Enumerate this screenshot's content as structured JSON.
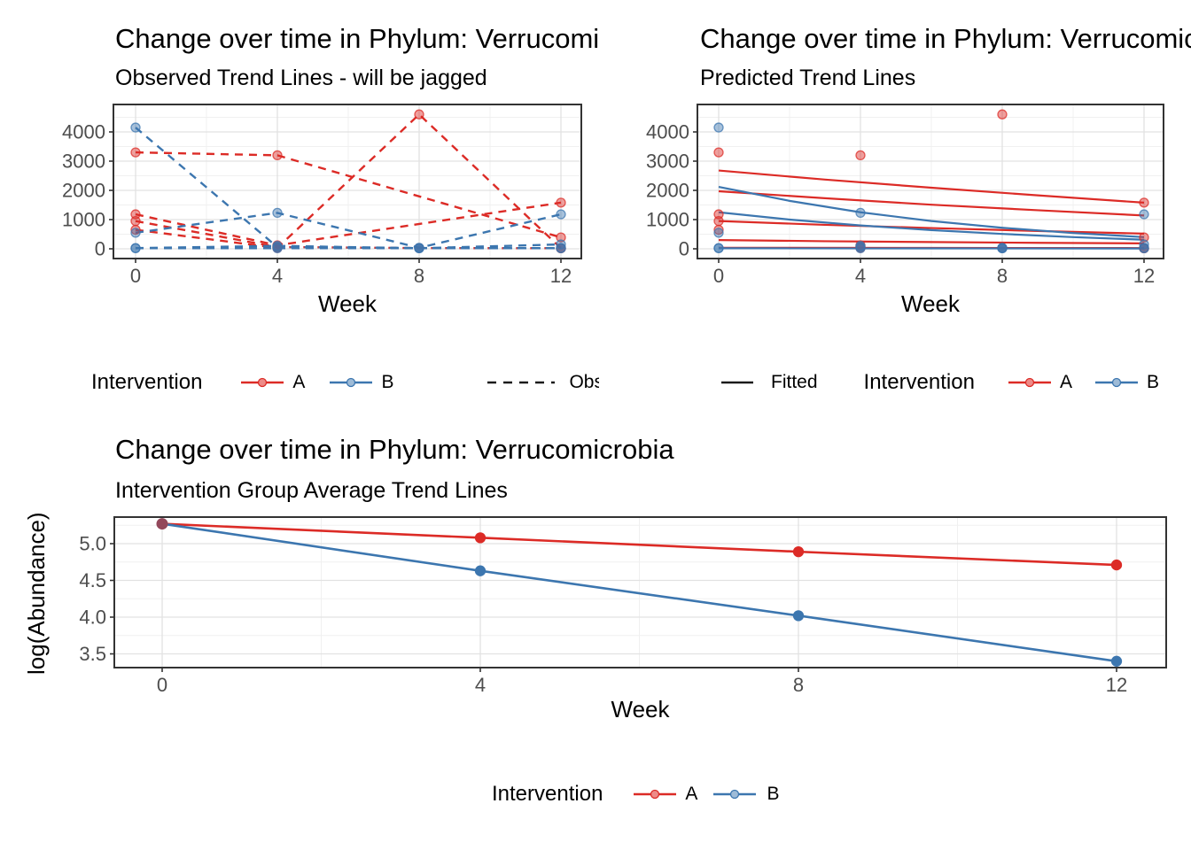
{
  "colors": {
    "red": "#DC2B26",
    "red_fill": "#ED8B88",
    "blue": "#3C76AF",
    "blue_fill": "#9EBBD7",
    "overlap_maroon": "#93485B",
    "grid_major": "#E2E2E2",
    "grid_minor": "#F0F0F0",
    "panel_border": "#333333",
    "tick_text": "#4D4D4D",
    "legend_line": "#1a1a1a"
  },
  "chart_data": [
    {
      "type": "line",
      "title": "Change over time in Phylum: Verrucomicrobia",
      "subtitle": "Observed Trend Lines - will be jagged",
      "xlabel": "Week",
      "x_ticks": [
        0,
        4,
        8,
        12
      ],
      "x_tick_labels": [
        "0",
        "4",
        "8",
        "12"
      ],
      "x_minor": [
        2,
        6,
        10
      ],
      "y_ticks": [
        0,
        1000,
        2000,
        3000,
        4000
      ],
      "y_tick_labels": [
        "0",
        "1000",
        "2000",
        "3000",
        "4000"
      ],
      "y_minor": [
        500,
        1500,
        2500,
        3500,
        4500
      ],
      "xlim": [
        -0.62,
        12.58
      ],
      "ylim": [
        -333,
        4940
      ],
      "line_style": "dashed",
      "grid": true,
      "legend_position": "bottom",
      "legend": {
        "title": "Intervention",
        "items": [
          {
            "label": "A"
          },
          {
            "label": "B"
          }
        ],
        "linetype_label": "Observed"
      },
      "series": [
        {
          "group": "A",
          "subject": "A1",
          "values": [
            [
              0,
              3300
            ],
            [
              4,
              3200
            ],
            [
              12,
              390
            ]
          ]
        },
        {
          "group": "A",
          "subject": "A2",
          "values": [
            [
              0,
              650
            ],
            [
              4,
              30
            ],
            [
              8,
              4600
            ],
            [
              12,
              20
            ]
          ]
        },
        {
          "group": "A",
          "subject": "A3",
          "values": [
            [
              0,
              1180
            ],
            [
              4,
              120
            ],
            [
              12,
              1580
            ]
          ]
        },
        {
          "group": "A",
          "subject": "A4",
          "values": [
            [
              0,
              950
            ],
            [
              4,
              60
            ],
            [
              8,
              25
            ],
            [
              12,
              20
            ]
          ]
        },
        {
          "group": "B",
          "subject": "B1",
          "values": [
            [
              0,
              4150
            ],
            [
              4,
              60
            ],
            [
              8,
              25
            ],
            [
              12,
              25
            ]
          ]
        },
        {
          "group": "B",
          "subject": "B2",
          "values": [
            [
              0,
              550
            ],
            [
              4,
              1230
            ],
            [
              8,
              35
            ],
            [
              12,
              1180
            ]
          ]
        },
        {
          "group": "B",
          "subject": "B3",
          "values": [
            [
              0,
              25
            ],
            [
              4,
              100
            ],
            [
              8,
              20
            ],
            [
              12,
              150
            ]
          ]
        },
        {
          "group": "B",
          "subject": "B4",
          "values": [
            [
              0,
              20
            ],
            [
              4,
              20
            ],
            [
              8,
              20
            ],
            [
              12,
              20
            ]
          ]
        }
      ]
    },
    {
      "type": "scatter+line",
      "title": "Change over time in Phylum: Verrucomicrobia",
      "subtitle": "Predicted Trend Lines",
      "xlabel": "Week",
      "x_ticks": [
        0,
        4,
        8,
        12
      ],
      "x_tick_labels": [
        "0",
        "4",
        "8",
        "12"
      ],
      "x_minor": [
        2,
        6,
        10
      ],
      "y_ticks": [
        0,
        1000,
        2000,
        3000,
        4000
      ],
      "y_tick_labels": [
        "0",
        "1000",
        "2000",
        "3000",
        "4000"
      ],
      "y_minor": [
        500,
        1500,
        2500,
        3500,
        4500
      ],
      "xlim": [
        -0.62,
        12.58
      ],
      "ylim": [
        -333,
        4940
      ],
      "line_style": "solid",
      "grid": true,
      "legend_position": "bottom",
      "legend": {
        "linetype_label": "Fitted",
        "title": "Intervention",
        "items": [
          {
            "label": "A"
          },
          {
            "label": "B"
          }
        ]
      },
      "fitted": [
        {
          "group": "A",
          "values": [
            [
              0,
              2680
            ],
            [
              3,
              2370
            ],
            [
              6,
              2090
            ],
            [
              9,
              1830
            ],
            [
              12,
              1580
            ]
          ]
        },
        {
          "group": "A",
          "values": [
            [
              0,
              1970
            ],
            [
              3,
              1730
            ],
            [
              6,
              1510
            ],
            [
              9,
              1320
            ],
            [
              12,
              1140
            ]
          ]
        },
        {
          "group": "A",
          "values": [
            [
              0,
              950
            ],
            [
              3,
              820
            ],
            [
              6,
              710
            ],
            [
              9,
              610
            ],
            [
              12,
              520
            ]
          ]
        },
        {
          "group": "A",
          "values": [
            [
              0,
              300
            ],
            [
              3,
              260
            ],
            [
              6,
              230
            ],
            [
              9,
              205
            ],
            [
              12,
              185
            ]
          ]
        },
        {
          "group": "A",
          "values": [
            [
              0,
              35
            ],
            [
              6,
              30
            ],
            [
              12,
              25
            ]
          ]
        },
        {
          "group": "B",
          "values": [
            [
              0,
              2120
            ],
            [
              2,
              1640
            ],
            [
              4,
              1250
            ],
            [
              6,
              950
            ],
            [
              8,
              720
            ],
            [
              10,
              540
            ],
            [
              12,
              400
            ]
          ]
        },
        {
          "group": "B",
          "values": [
            [
              0,
              1250
            ],
            [
              2,
              1000
            ],
            [
              4,
              800
            ],
            [
              6,
              640
            ],
            [
              8,
              510
            ],
            [
              10,
              400
            ],
            [
              12,
              310
            ]
          ]
        },
        {
          "group": "B",
          "values": [
            [
              0,
              18
            ],
            [
              6,
              15
            ],
            [
              12,
              12
            ]
          ]
        }
      ],
      "scatter": [
        [
          0,
          3300,
          "A"
        ],
        [
          4,
          3200,
          "A"
        ],
        [
          12,
          390,
          "A"
        ],
        [
          0,
          650,
          "A"
        ],
        [
          4,
          30,
          "A"
        ],
        [
          8,
          4600,
          "A"
        ],
        [
          12,
          20,
          "A"
        ],
        [
          0,
          1180,
          "A"
        ],
        [
          4,
          120,
          "A"
        ],
        [
          12,
          1580,
          "A"
        ],
        [
          0,
          950,
          "A"
        ],
        [
          4,
          60,
          "A"
        ],
        [
          8,
          25,
          "A"
        ],
        [
          12,
          20,
          "A"
        ],
        [
          0,
          4150,
          "B"
        ],
        [
          4,
          60,
          "B"
        ],
        [
          8,
          25,
          "B"
        ],
        [
          12,
          25,
          "B"
        ],
        [
          0,
          550,
          "B"
        ],
        [
          4,
          1230,
          "B"
        ],
        [
          8,
          35,
          "B"
        ],
        [
          12,
          1180,
          "B"
        ],
        [
          0,
          25,
          "B"
        ],
        [
          4,
          100,
          "B"
        ],
        [
          8,
          20,
          "B"
        ],
        [
          12,
          150,
          "B"
        ],
        [
          0,
          20,
          "B"
        ],
        [
          4,
          20,
          "B"
        ],
        [
          8,
          20,
          "B"
        ],
        [
          12,
          20,
          "B"
        ]
      ]
    },
    {
      "type": "line",
      "title": "Change over time in Phylum: Verrucomicrobia",
      "subtitle": "Intervention Group Average Trend Lines",
      "xlabel": "Week",
      "ylabel": "log(Abundance)",
      "x_ticks": [
        0,
        4,
        8,
        12
      ],
      "x_tick_labels": [
        "0",
        "4",
        "8",
        "12"
      ],
      "x_minor": [
        2,
        6,
        10
      ],
      "y_ticks": [
        3.5,
        4.0,
        4.5,
        5.0
      ],
      "y_tick_labels": [
        "3.5",
        "4.0",
        "4.5",
        "5.0"
      ],
      "y_minor": [
        3.75,
        4.25,
        4.75,
        5.25
      ],
      "xlim": [
        -0.6,
        12.62
      ],
      "ylim": [
        3.31,
        5.36
      ],
      "line_style": "solid",
      "grid": true,
      "legend_position": "bottom",
      "legend": {
        "title": "Intervention",
        "items": [
          {
            "label": "A"
          },
          {
            "label": "B"
          }
        ]
      },
      "series": [
        {
          "group": "A",
          "values": [
            [
              0,
              5.27
            ],
            [
              4,
              5.08
            ],
            [
              8,
              4.89
            ],
            [
              12,
              4.71
            ]
          ]
        },
        {
          "group": "B",
          "values": [
            [
              0,
              5.27
            ],
            [
              4,
              4.63
            ],
            [
              8,
              4.02
            ],
            [
              12,
              3.4
            ]
          ]
        }
      ],
      "overlap_point": {
        "x": 0,
        "y": 5.27
      }
    }
  ]
}
